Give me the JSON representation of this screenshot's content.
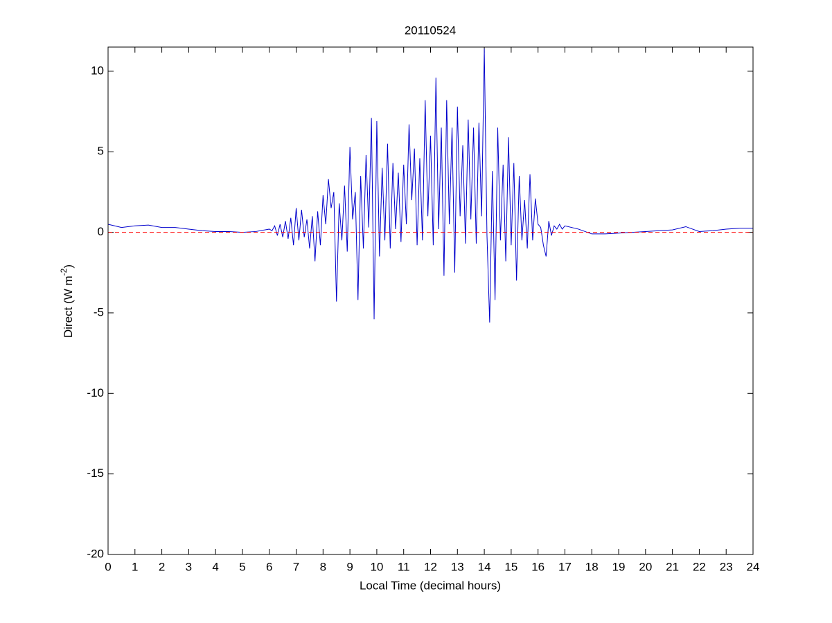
{
  "chart_data": {
    "type": "line",
    "title": "20110524",
    "xlabel": "Local Time (decimal hours)",
    "ylabel": {
      "text": "Direct (W m",
      "sup": "-2",
      "tail": ")"
    },
    "x": [
      0,
      0.5,
      1,
      1.5,
      2,
      2.5,
      3,
      3.5,
      4,
      4.5,
      5,
      5.5,
      6.0,
      6.1,
      6.2,
      6.3,
      6.4,
      6.5,
      6.6,
      6.7,
      6.8,
      6.9,
      7.0,
      7.1,
      7.2,
      7.3,
      7.4,
      7.5,
      7.6,
      7.7,
      7.8,
      7.9,
      8.0,
      8.1,
      8.2,
      8.3,
      8.4,
      8.5,
      8.6,
      8.7,
      8.8,
      8.9,
      9.0,
      9.1,
      9.2,
      9.3,
      9.4,
      9.5,
      9.6,
      9.7,
      9.8,
      9.9,
      10.0,
      10.1,
      10.2,
      10.3,
      10.4,
      10.5,
      10.6,
      10.7,
      10.8,
      10.9,
      11.0,
      11.1,
      11.2,
      11.3,
      11.4,
      11.5,
      11.6,
      11.7,
      11.8,
      11.9,
      12.0,
      12.1,
      12.2,
      12.3,
      12.4,
      12.5,
      12.6,
      12.7,
      12.8,
      12.9,
      13.0,
      13.1,
      13.2,
      13.3,
      13.4,
      13.5,
      13.6,
      13.7,
      13.8,
      13.9,
      14.0,
      14.1,
      14.2,
      14.3,
      14.4,
      14.5,
      14.6,
      14.7,
      14.8,
      14.9,
      15.0,
      15.1,
      15.2,
      15.3,
      15.4,
      15.5,
      15.6,
      15.7,
      15.8,
      15.9,
      16.0,
      16.1,
      16.2,
      16.3,
      16.4,
      16.5,
      16.6,
      16.7,
      16.8,
      16.9,
      17.0,
      17.5,
      18,
      18.5,
      19,
      19.5,
      20,
      20.5,
      21,
      21.5,
      22,
      22.5,
      23,
      23.5,
      24
    ],
    "series": [
      {
        "color": "#0000cc",
        "values": [
          0.5,
          0.3,
          0.4,
          0.45,
          0.3,
          0.3,
          0.2,
          0.1,
          0.05,
          0.05,
          0,
          0.05,
          0.2,
          0.1,
          0.4,
          -0.2,
          0.5,
          -0.3,
          0.7,
          -0.4,
          0.9,
          -0.8,
          1.5,
          -0.5,
          1.4,
          -0.3,
          0.8,
          -1.0,
          1.0,
          -1.8,
          1.3,
          -0.8,
          2.3,
          0.5,
          3.3,
          1.5,
          2.5,
          -4.3,
          1.8,
          -0.5,
          2.9,
          -1.2,
          5.3,
          0.8,
          2.5,
          -4.2,
          3.5,
          -1.0,
          4.8,
          0.3,
          7.1,
          -5.4,
          6.9,
          -1.5,
          4.0,
          -0.5,
          5.5,
          -1.0,
          4.3,
          0.2,
          3.7,
          -0.6,
          4.2,
          0.5,
          6.7,
          2.0,
          5.2,
          -0.8,
          4.6,
          -0.5,
          8.2,
          1.0,
          6.0,
          -0.8,
          9.6,
          0.2,
          6.5,
          -2.7,
          8.2,
          0.5,
          6.5,
          -2.5,
          7.8,
          1.0,
          5.4,
          -0.7,
          7.0,
          0.8,
          6.5,
          -0.7,
          6.8,
          1.0,
          11.4,
          -0.2,
          -5.6,
          3.8,
          -4.2,
          6.5,
          -0.5,
          4.2,
          -1.8,
          5.9,
          -0.8,
          4.3,
          -3.0,
          3.5,
          -0.5,
          2.0,
          -1.0,
          3.6,
          -0.5,
          2.1,
          0.5,
          0.3,
          -0.8,
          -1.5,
          0.7,
          -0.2,
          0.4,
          0.2,
          0.5,
          0.2,
          0.4,
          0.2,
          -0.1,
          -0.1,
          -0.05,
          0,
          0.05,
          0.1,
          0.15,
          0.35,
          0.05,
          0.1,
          0.2,
          0.25,
          0.25
        ]
      }
    ],
    "reference_line": {
      "value": 0,
      "color": "#ff0000",
      "style": "dashed"
    },
    "xlim": [
      0,
      24
    ],
    "xticks": [
      0,
      1,
      2,
      3,
      4,
      5,
      6,
      7,
      8,
      9,
      10,
      11,
      12,
      13,
      14,
      15,
      16,
      17,
      18,
      19,
      20,
      21,
      22,
      23,
      24
    ],
    "ylim": [
      -20,
      11.5
    ],
    "yticks": [
      -20,
      -15,
      -10,
      -5,
      0,
      5,
      10
    ],
    "grid": false
  }
}
